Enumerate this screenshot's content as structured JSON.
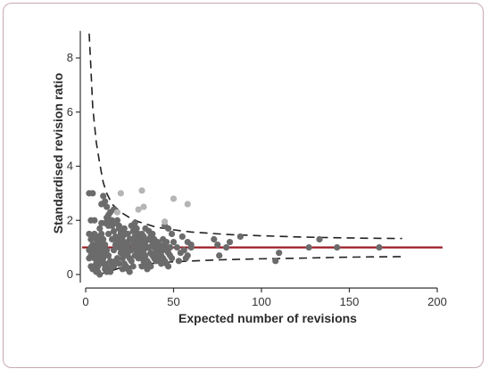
{
  "chart_data": {
    "type": "scatter",
    "xlabel": "Expected number of revisions",
    "ylabel": "Standardised revision ratio",
    "xlim": [
      0,
      200
    ],
    "ylim": [
      -0.3,
      9
    ],
    "x_ticks": [
      0,
      50,
      100,
      150,
      200
    ],
    "y_ticks": [
      0,
      2,
      4,
      6,
      8
    ],
    "grid": false,
    "reference_line": {
      "y": 1,
      "x_range": [
        -2,
        203
      ],
      "color": "#9b1c24"
    },
    "control_limits": {
      "style": "dashed",
      "upper": [
        [
          2,
          8.9
        ],
        [
          3,
          7.6
        ],
        [
          4,
          6.2
        ],
        [
          6,
          4.9
        ],
        [
          8,
          4.1
        ],
        [
          10,
          3.4
        ],
        [
          12,
          3.0
        ],
        [
          15,
          2.6
        ],
        [
          20,
          2.3
        ],
        [
          25,
          2.1
        ],
        [
          30,
          1.95
        ],
        [
          40,
          1.75
        ],
        [
          50,
          1.65
        ],
        [
          60,
          1.57
        ],
        [
          80,
          1.48
        ],
        [
          100,
          1.43
        ],
        [
          120,
          1.39
        ],
        [
          140,
          1.36
        ],
        [
          160,
          1.34
        ],
        [
          180,
          1.33
        ]
      ],
      "lower": [
        [
          8,
          0.0
        ],
        [
          10,
          0.05
        ],
        [
          15,
          0.15
        ],
        [
          20,
          0.25
        ],
        [
          30,
          0.35
        ],
        [
          40,
          0.42
        ],
        [
          50,
          0.47
        ],
        [
          60,
          0.5
        ],
        [
          80,
          0.55
        ],
        [
          100,
          0.58
        ],
        [
          120,
          0.6
        ],
        [
          140,
          0.63
        ],
        [
          160,
          0.65
        ],
        [
          180,
          0.66
        ]
      ]
    },
    "series": [
      {
        "color": "#6b6b6b",
        "points": [
          [
            2,
            3.0
          ],
          [
            4,
            3.0
          ],
          [
            3,
            2.0
          ],
          [
            5,
            2.0
          ],
          [
            2,
            1.5
          ],
          [
            3,
            1.3
          ],
          [
            4,
            1.1
          ],
          [
            5,
            0.9
          ],
          [
            6,
            0.7
          ],
          [
            7,
            0.5
          ],
          [
            3,
            0.3
          ],
          [
            4,
            0.2
          ],
          [
            6,
            0.1
          ],
          [
            8,
            0.0
          ],
          [
            9,
            2.6
          ],
          [
            10,
            2.9
          ],
          [
            11,
            2.7
          ],
          [
            12,
            2.5
          ],
          [
            13,
            2.2
          ],
          [
            14,
            2.0
          ],
          [
            15,
            1.8
          ],
          [
            16,
            1.6
          ],
          [
            17,
            1.4
          ],
          [
            18,
            1.2
          ],
          [
            19,
            1.0
          ],
          [
            20,
            0.8
          ],
          [
            21,
            0.6
          ],
          [
            22,
            0.4
          ],
          [
            23,
            0.3
          ],
          [
            24,
            0.2
          ],
          [
            25,
            0.1
          ],
          [
            8,
            1.7
          ],
          [
            9,
            1.5
          ],
          [
            10,
            1.3
          ],
          [
            11,
            1.1
          ],
          [
            12,
            0.9
          ],
          [
            13,
            0.7
          ],
          [
            14,
            0.5
          ],
          [
            15,
            0.4
          ],
          [
            16,
            0.3
          ],
          [
            7,
            1.2
          ],
          [
            8,
            1.0
          ],
          [
            9,
            0.8
          ],
          [
            10,
            0.6
          ],
          [
            11,
            0.4
          ],
          [
            12,
            0.3
          ],
          [
            13,
            0.2
          ],
          [
            14,
            0.1
          ],
          [
            5,
            1.5
          ],
          [
            6,
            1.3
          ],
          [
            7,
            0.9
          ],
          [
            8,
            0.7
          ],
          [
            9,
            0.5
          ],
          [
            10,
            0.4
          ],
          [
            11,
            0.2
          ],
          [
            12,
            0.1
          ],
          [
            4,
            0.8
          ],
          [
            5,
            0.6
          ],
          [
            6,
            0.4
          ],
          [
            7,
            0.3
          ],
          [
            18,
            2.0
          ],
          [
            19,
            1.8
          ],
          [
            20,
            1.6
          ],
          [
            21,
            1.4
          ],
          [
            22,
            1.2
          ],
          [
            23,
            1.0
          ],
          [
            24,
            0.8
          ],
          [
            25,
            0.6
          ],
          [
            26,
            0.5
          ],
          [
            27,
            0.3
          ],
          [
            28,
            1.9
          ],
          [
            29,
            1.7
          ],
          [
            30,
            1.5
          ],
          [
            31,
            1.3
          ],
          [
            32,
            1.1
          ],
          [
            33,
            0.9
          ],
          [
            34,
            0.7
          ],
          [
            35,
            0.5
          ],
          [
            36,
            0.4
          ],
          [
            37,
            0.3
          ],
          [
            38,
            1.5
          ],
          [
            39,
            1.3
          ],
          [
            40,
            1.2
          ],
          [
            41,
            1.0
          ],
          [
            42,
            0.8
          ],
          [
            43,
            0.7
          ],
          [
            44,
            0.6
          ],
          [
            45,
            0.5
          ],
          [
            46,
            0.4
          ],
          [
            47,
            0.3
          ],
          [
            26,
            1.8
          ],
          [
            27,
            1.6
          ],
          [
            28,
            1.4
          ],
          [
            29,
            1.2
          ],
          [
            30,
            1.0
          ],
          [
            31,
            0.8
          ],
          [
            32,
            0.6
          ],
          [
            33,
            0.5
          ],
          [
            34,
            0.4
          ],
          [
            35,
            0.2
          ],
          [
            36,
            1.6
          ],
          [
            37,
            1.4
          ],
          [
            38,
            1.2
          ],
          [
            39,
            1.0
          ],
          [
            40,
            0.8
          ],
          [
            41,
            0.7
          ],
          [
            42,
            0.5
          ],
          [
            43,
            0.4
          ],
          [
            44,
            1.3
          ],
          [
            45,
            1.1
          ],
          [
            46,
            0.9
          ],
          [
            47,
            0.8
          ],
          [
            48,
            0.7
          ],
          [
            49,
            0.6
          ],
          [
            50,
            1.2
          ],
          [
            52,
            1.0
          ],
          [
            54,
            0.8
          ],
          [
            55,
            1.4
          ],
          [
            56,
            0.9
          ],
          [
            58,
            0.7
          ],
          [
            58,
            1.2
          ],
          [
            60,
            1.1
          ],
          [
            49,
            1.5
          ],
          [
            47,
            1.7
          ],
          [
            45,
            1.8
          ],
          [
            12,
            2.1
          ],
          [
            14,
            2.3
          ],
          [
            16,
            2.4
          ],
          [
            11,
            1.9
          ],
          [
            9,
            1.9
          ],
          [
            17,
            1.1
          ],
          [
            19,
            1.3
          ],
          [
            21,
            0.9
          ],
          [
            23,
            1.5
          ],
          [
            25,
            1.3
          ],
          [
            27,
            1.1
          ],
          [
            29,
            0.9
          ],
          [
            31,
            1.2
          ],
          [
            33,
            1.4
          ],
          [
            35,
            1.0
          ],
          [
            37,
            0.8
          ],
          [
            39,
            0.6
          ],
          [
            41,
            1.2
          ],
          [
            43,
            1.0
          ],
          [
            6,
            1.0
          ],
          [
            7,
            1.4
          ],
          [
            8,
            1.3
          ],
          [
            9,
            1.1
          ],
          [
            10,
            0.9
          ],
          [
            11,
            0.7
          ],
          [
            13,
            1.5
          ],
          [
            15,
            1.3
          ],
          [
            16,
            0.9
          ],
          [
            18,
            0.6
          ],
          [
            20,
            1.1
          ],
          [
            22,
            0.7
          ],
          [
            24,
            1.1
          ],
          [
            26,
            0.9
          ],
          [
            28,
            0.7
          ],
          [
            30,
            0.6
          ],
          [
            32,
            0.3
          ],
          [
            34,
            1.2
          ],
          [
            36,
            1.0
          ],
          [
            38,
            0.7
          ],
          [
            40,
            0.5
          ],
          [
            44,
            0.9
          ],
          [
            46,
            1.2
          ],
          [
            48,
            1.0
          ],
          [
            5,
            0.3
          ],
          [
            6,
            0.2
          ],
          [
            7,
            0.1
          ],
          [
            17,
            0.5
          ],
          [
            19,
            0.4
          ],
          [
            21,
            0.2
          ],
          [
            22,
            1.7
          ],
          [
            24,
            1.5
          ],
          [
            26,
            1.3
          ],
          [
            28,
            1.1
          ],
          [
            30,
            1.3
          ],
          [
            32,
            1.5
          ],
          [
            34,
            1.7
          ],
          [
            36,
            1.3
          ],
          [
            38,
            1.1
          ],
          [
            40,
            1.0
          ],
          [
            42,
            1.1
          ],
          [
            15,
            2.0
          ],
          [
            17,
            1.9
          ],
          [
            19,
            1.7
          ],
          [
            20,
            1.5
          ],
          [
            13,
            1.8
          ],
          [
            3,
            1.0
          ],
          [
            4,
            1.4
          ],
          [
            2,
            0.9
          ],
          [
            2,
            0.6
          ],
          [
            3,
            0.7
          ],
          [
            53,
            0.5
          ],
          [
            57,
            0.6
          ],
          [
            60,
            1.0
          ],
          [
            73,
            1.3
          ],
          [
            75,
            1.1
          ],
          [
            76,
            0.7
          ],
          [
            80,
            1.0
          ],
          [
            82,
            1.2
          ],
          [
            88,
            1.4
          ],
          [
            108,
            0.5
          ],
          [
            110,
            0.8
          ],
          [
            127,
            1.0
          ],
          [
            133,
            1.3
          ],
          [
            143,
            1.0
          ],
          [
            167,
            1.0
          ]
        ]
      },
      {
        "color": "#b5b5b5",
        "points": [
          [
            20,
            3.0
          ],
          [
            32,
            3.1
          ],
          [
            30,
            2.4
          ],
          [
            33,
            2.5
          ],
          [
            45,
            1.95
          ],
          [
            50,
            2.8
          ],
          [
            58,
            2.6
          ],
          [
            18,
            2.3
          ]
        ]
      }
    ]
  }
}
